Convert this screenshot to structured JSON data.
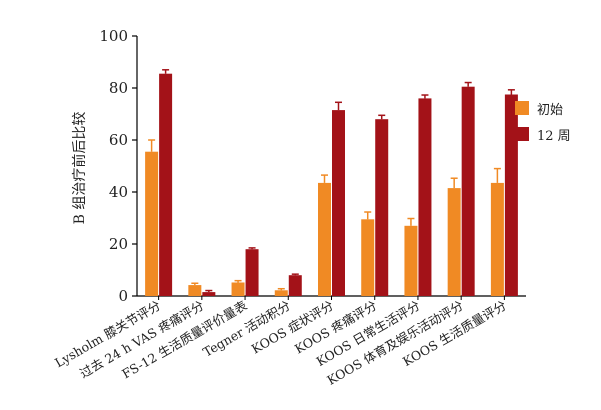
{
  "chart_data": {
    "type": "bar",
    "ylabel": "B 组治疗前后比较",
    "ylim": [
      0,
      100
    ],
    "yticks": [
      "0",
      "20",
      "40",
      "60",
      "80",
      "100"
    ],
    "categories": [
      "Lysholm 膝关节评分",
      "过去 24 h VAS 疼痛评分",
      "FS-12 生活质量评价量表",
      "Tegner 活动积分",
      "KOOS 症状评分",
      "KOOS 疼痛评分",
      "KOOS 日常生活评分",
      "KOOS 体育及娱乐活动评分",
      "KOOS 生活质量评分"
    ],
    "series": [
      {
        "name": "初始",
        "color": "#f08a24",
        "values": [
          55.5,
          4.2,
          5.2,
          2.2,
          43.5,
          29.5,
          27.0,
          41.5,
          43.5
        ],
        "errors": [
          4.5,
          0.7,
          0.7,
          0.6,
          3.0,
          2.8,
          2.8,
          3.8,
          5.5
        ]
      },
      {
        "name": "12 周",
        "color": "#a31218",
        "values": [
          85.5,
          1.5,
          18.0,
          8.0,
          71.5,
          68.0,
          76.0,
          80.5,
          77.5
        ],
        "errors": [
          1.5,
          0.6,
          0.5,
          0.4,
          3.0,
          1.5,
          1.3,
          1.6,
          1.8
        ]
      }
    ],
    "legend_position": "right",
    "grid": false
  }
}
